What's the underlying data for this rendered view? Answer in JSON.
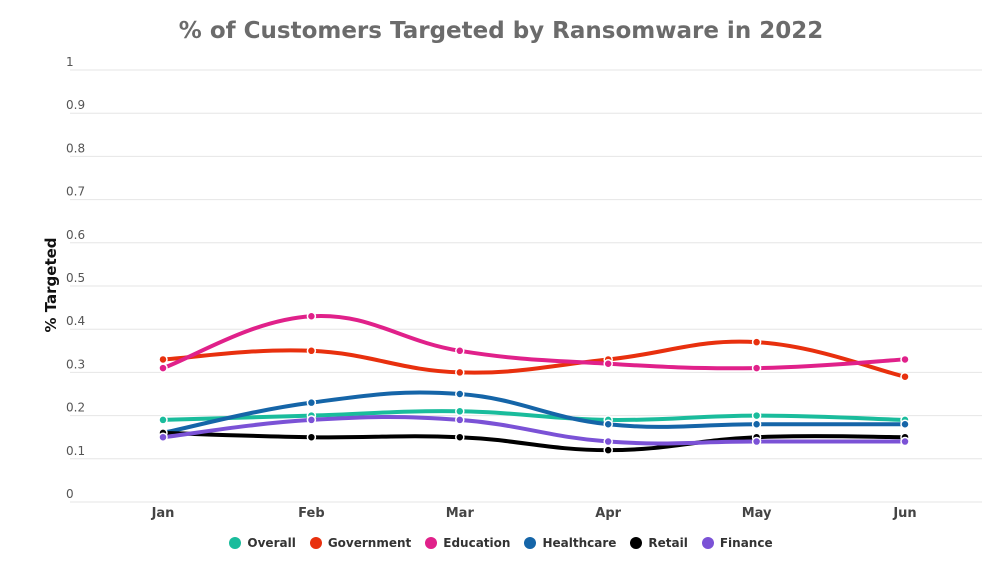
{
  "chart_data": {
    "type": "line",
    "title": "% of Customers Targeted by Ransomware in 2022",
    "xlabel": "",
    "ylabel": "% Targeted",
    "categories": [
      "Jan",
      "Feb",
      "Mar",
      "Apr",
      "May",
      "Jun"
    ],
    "ylim": [
      0,
      1
    ],
    "yticks": [
      "0",
      "0.1",
      "0.2",
      "0.3",
      "0.4",
      "0.5",
      "0.6",
      "0.7",
      "0.8",
      "0.9",
      "1"
    ],
    "grid": true,
    "legend_position": "bottom-center",
    "series": [
      {
        "name": "Overall",
        "color": "#1abc9c",
        "values": [
          0.19,
          0.2,
          0.21,
          0.19,
          0.2,
          0.19
        ]
      },
      {
        "name": "Government",
        "color": "#e8300e",
        "values": [
          0.33,
          0.35,
          0.3,
          0.33,
          0.37,
          0.29
        ]
      },
      {
        "name": "Education",
        "color": "#e0218a",
        "values": [
          0.31,
          0.43,
          0.35,
          0.32,
          0.31,
          0.33
        ]
      },
      {
        "name": "Healthcare",
        "color": "#1565a8",
        "values": [
          0.16,
          0.23,
          0.25,
          0.18,
          0.18,
          0.18
        ]
      },
      {
        "name": "Retail",
        "color": "#000000",
        "values": [
          0.16,
          0.15,
          0.15,
          0.12,
          0.15,
          0.15
        ]
      },
      {
        "name": "Finance",
        "color": "#7b52d6",
        "values": [
          0.15,
          0.19,
          0.19,
          0.14,
          0.14,
          0.14
        ]
      }
    ]
  }
}
